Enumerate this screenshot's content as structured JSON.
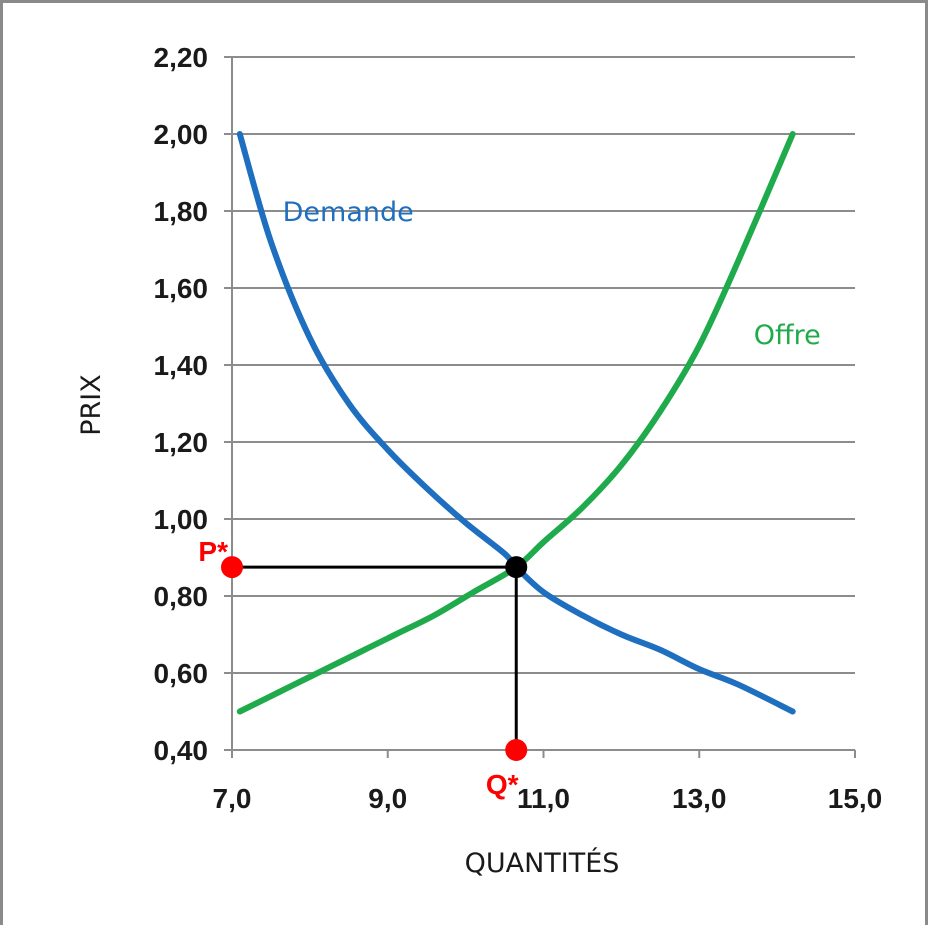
{
  "chart_data": {
    "type": "line",
    "xlabel": "QUANTITÉS",
    "ylabel": "PRIX",
    "xlim": [
      7.0,
      15.0
    ],
    "ylim": [
      0.4,
      2.2
    ],
    "x_ticks": [
      "7,0",
      "9,0",
      "11,0",
      "13,0",
      "15,0"
    ],
    "y_ticks": [
      "0,40",
      "0,60",
      "0,80",
      "1,00",
      "1,20",
      "1,40",
      "1,60",
      "1,80",
      "2,00",
      "2,20"
    ],
    "x_tick_values": [
      7,
      9,
      11,
      13,
      15
    ],
    "y_tick_values": [
      0.4,
      0.6,
      0.8,
      1.0,
      1.2,
      1.4,
      1.6,
      1.8,
      2.0,
      2.2
    ],
    "grid": "horizontal",
    "series": [
      {
        "name": "Demande",
        "color": "#1f6fc0",
        "points": [
          [
            7.1,
            2.0
          ],
          [
            7.5,
            1.72
          ],
          [
            8.0,
            1.47
          ],
          [
            8.5,
            1.3
          ],
          [
            9.0,
            1.18
          ],
          [
            9.5,
            1.08
          ],
          [
            10.0,
            0.99
          ],
          [
            10.5,
            0.91
          ],
          [
            10.65,
            0.875
          ],
          [
            11.0,
            0.81
          ],
          [
            11.5,
            0.75
          ],
          [
            12.0,
            0.7
          ],
          [
            12.5,
            0.66
          ],
          [
            13.0,
            0.61
          ],
          [
            13.5,
            0.57
          ],
          [
            14.2,
            0.5
          ]
        ]
      },
      {
        "name": "Offre",
        "color": "#1faa4b",
        "points": [
          [
            7.1,
            0.5
          ],
          [
            7.6,
            0.55
          ],
          [
            8.1,
            0.6
          ],
          [
            8.6,
            0.65
          ],
          [
            9.1,
            0.7
          ],
          [
            9.6,
            0.75
          ],
          [
            10.1,
            0.81
          ],
          [
            10.65,
            0.875
          ],
          [
            11.0,
            0.94
          ],
          [
            11.5,
            1.03
          ],
          [
            12.0,
            1.14
          ],
          [
            12.5,
            1.28
          ],
          [
            13.0,
            1.45
          ],
          [
            13.5,
            1.67
          ],
          [
            14.2,
            2.0
          ]
        ]
      }
    ],
    "equilibrium": {
      "x": 10.65,
      "y": 0.875,
      "price_label": "P*",
      "quantity_label": "Q*",
      "marker_color": "#ff0000",
      "point_color": "#000000"
    }
  }
}
